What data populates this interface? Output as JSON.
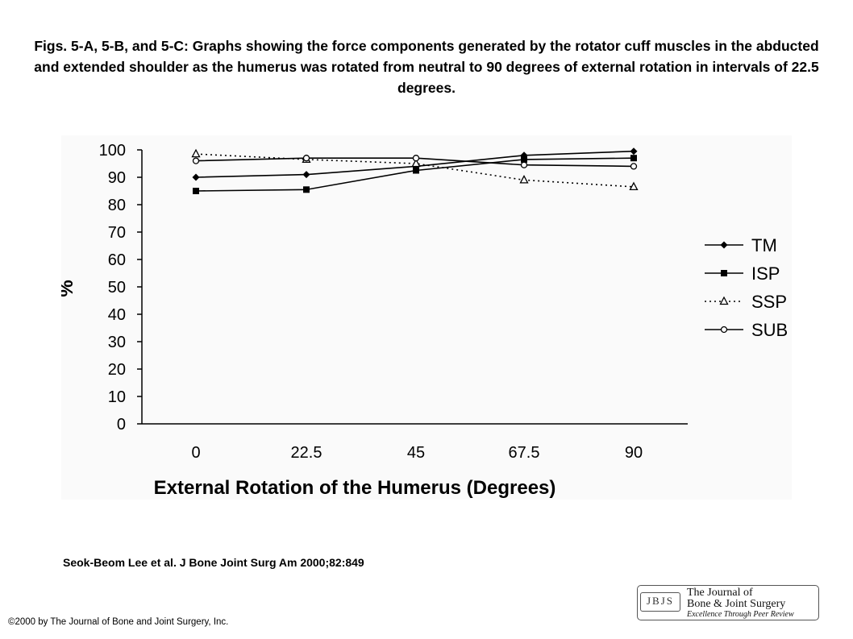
{
  "caption": "Figs. 5-A, 5-B, and 5-C: Graphs showing the force components generated by the rotator cuff muscles in the abducted and extended shoulder as the humerus was rotated from neutral to 90 degrees of external rotation in intervals of 22.5 degrees.",
  "citation": "Seok-Beom Lee et al. J Bone Joint Surg Am 2000;82:849",
  "copyright": "©2000 by The Journal of Bone and Joint Surgery, Inc.",
  "logo": {
    "letters": "JBJS",
    "line1": "The Journal of",
    "line2": "Bone & Joint Surgery",
    "line3": "Excellence Through Peer Review"
  },
  "chart_data": {
    "type": "line",
    "xlabel": "External Rotation of the Humerus (Degrees)",
    "ylabel": "%",
    "categories": [
      "0",
      "22.5",
      "45",
      "67.5",
      "90"
    ],
    "ylim": [
      0,
      100
    ],
    "yticks": [
      0,
      10,
      20,
      30,
      40,
      50,
      60,
      70,
      80,
      90,
      100
    ],
    "legend_position": "right",
    "grid": false,
    "series": [
      {
        "name": "TM",
        "marker": "diamond",
        "dash": "solid",
        "values": [
          90,
          91,
          94,
          98,
          99.5
        ]
      },
      {
        "name": "ISP",
        "marker": "square",
        "dash": "solid",
        "values": [
          85,
          85.5,
          92.5,
          96.5,
          97
        ]
      },
      {
        "name": "SSP",
        "marker": "triangle",
        "dash": "dotted",
        "values": [
          98.5,
          96.5,
          95,
          89,
          86.5
        ]
      },
      {
        "name": "SUB",
        "marker": "circle",
        "dash": "solid",
        "values": [
          96,
          97,
          97,
          94.5,
          94
        ]
      }
    ]
  }
}
